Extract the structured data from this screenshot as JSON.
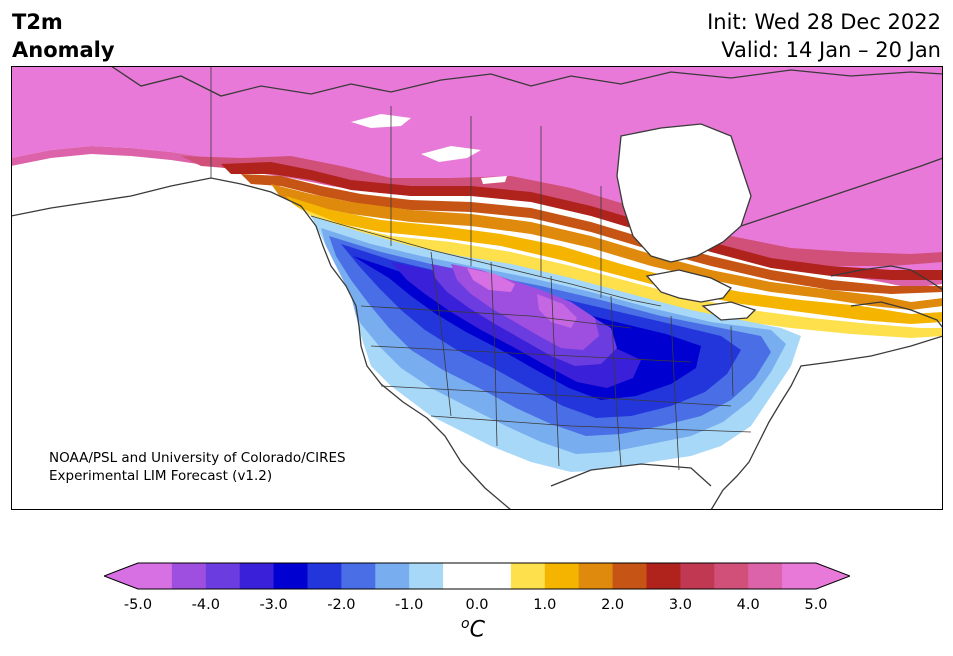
{
  "header": {
    "variable": "T2m",
    "variable_sub": "Anomaly",
    "init": "Init: Wed 28 Dec 2022",
    "valid": "Valid: 14 Jan – 20 Jan"
  },
  "credit": {
    "line1": "NOAA/PSL and University of Colorado/CIRES",
    "line2": "Experimental LIM Forecast (v1.2)"
  },
  "colorbar": {
    "tick_labels": [
      "-5.0",
      "-4.0",
      "-3.0",
      "-2.0",
      "-1.0",
      "0.0",
      "1.0",
      "2.0",
      "3.0",
      "4.0",
      "5.0"
    ],
    "unit_base": "C",
    "unit_sup": "o",
    "colors": [
      "#d670e3",
      "#9f4fe0",
      "#6b3ce0",
      "#3a20d8",
      "#0000d0",
      "#2236dc",
      "#4a6ee6",
      "#78aef0",
      "#a8d8f8",
      "#ffffff",
      "#ffffff",
      "#fde04c",
      "#f4b400",
      "#df8a0c",
      "#c65414",
      "#b0221c",
      "#c03852",
      "#d0507a",
      "#dc62aa",
      "#e879d8"
    ],
    "range": [
      -5.0,
      5.0
    ]
  }
}
